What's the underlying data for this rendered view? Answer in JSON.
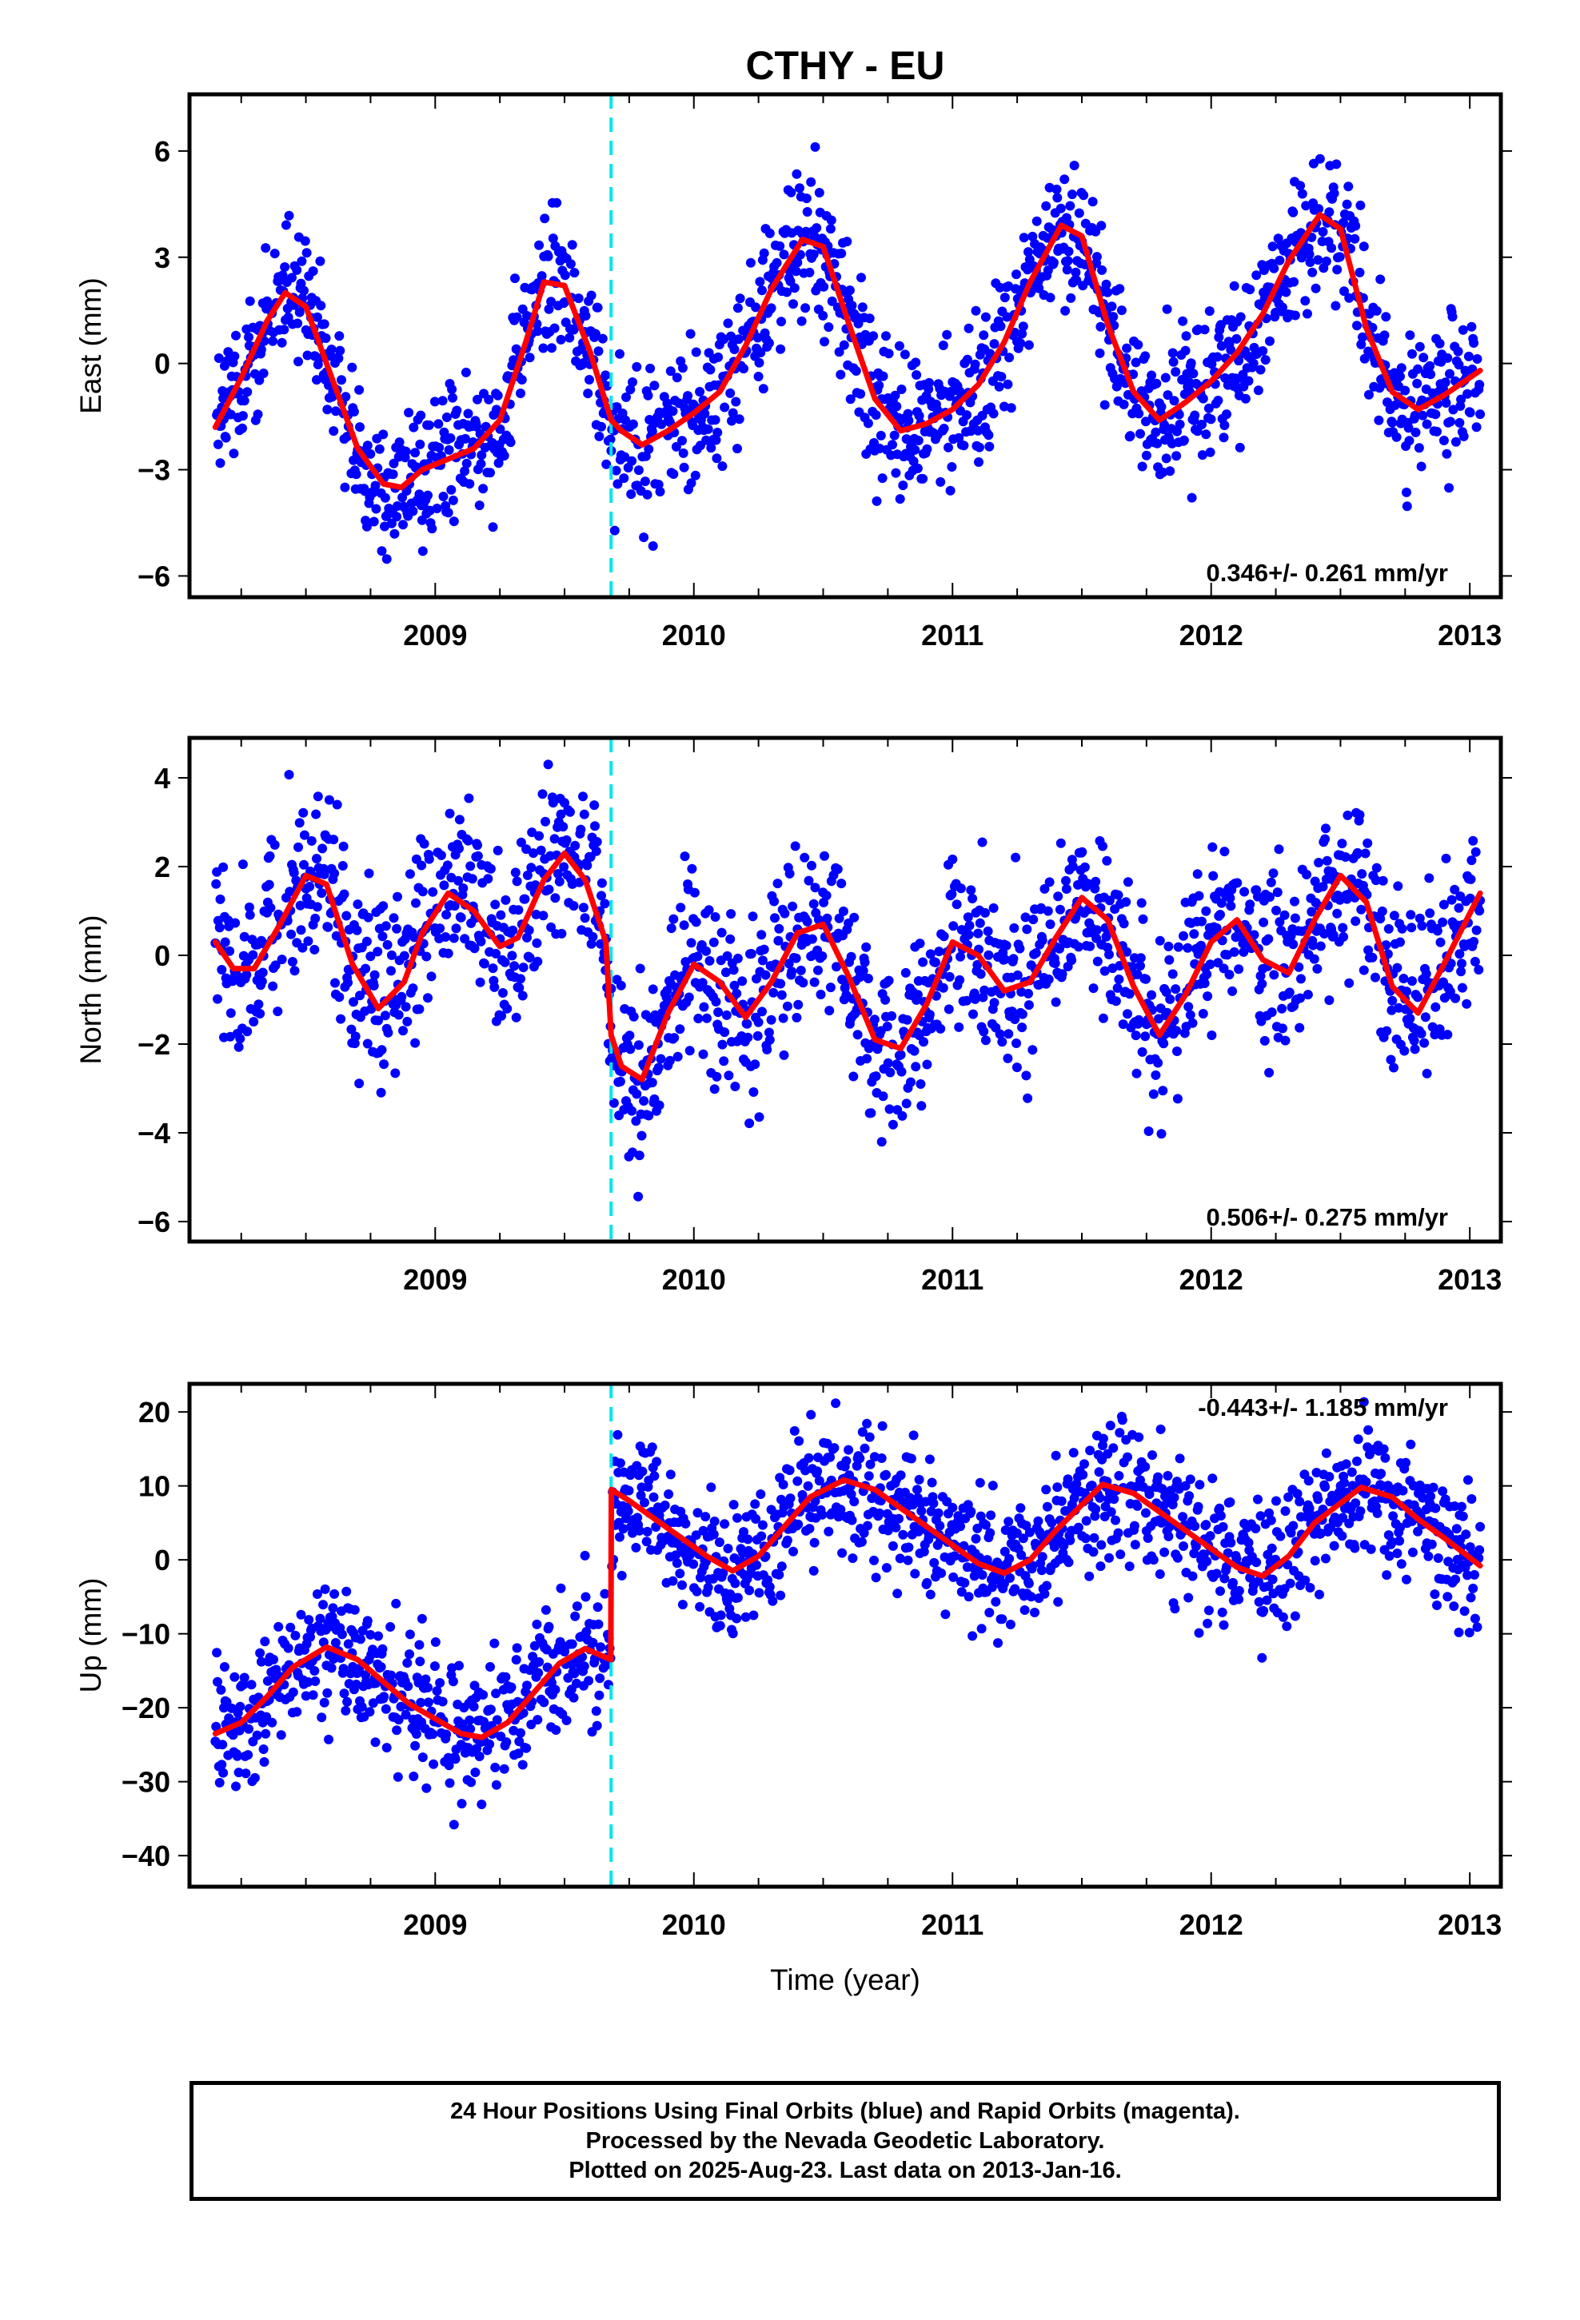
{
  "chart_title": "CTHY - EU",
  "x_axis_label": "Time (year)",
  "caption": {
    "line1": "24 Hour Positions Using Final Orbits (blue) and Rapid Orbits (magenta).",
    "line2": "Processed by the Nevada Geodetic Laboratory.",
    "line3": "Plotted on 2025-Aug-23. Last data on 2013-Jan-16."
  },
  "colors": {
    "points": "#0000ff",
    "model": "#ff0000",
    "event": "#00e5ee",
    "frame": "#000000"
  },
  "chart_data": [
    {
      "type": "scatter",
      "title": "CTHY - EU",
      "xlabel": "",
      "ylabel": "East (mm)",
      "xlim": [
        2008.05,
        2013.12
      ],
      "ylim": [
        -6.6,
        7.6
      ],
      "xticks": [
        2009,
        2010,
        2011,
        2012,
        2013
      ],
      "yticks": [
        -6,
        -3,
        0,
        3,
        6
      ],
      "rate_label": "0.346+/- 0.261 mm/yr",
      "rate_position": "bottom-right",
      "event_line_x": 2009.68,
      "scatter_noise_mm": 1.0,
      "series": [
        {
          "name": "24 Hour Positions (Final Orbits)",
          "kind": "points",
          "x_range": [
            2008.15,
            2013.04
          ],
          "style": "dots"
        },
        {
          "name": "Model fit",
          "kind": "line",
          "x": [
            2008.15,
            2008.25,
            2008.35,
            2008.42,
            2008.5,
            2008.6,
            2008.7,
            2008.8,
            2008.87,
            2008.95,
            2009.05,
            2009.15,
            2009.25,
            2009.35,
            2009.42,
            2009.5,
            2009.6,
            2009.68,
            2009.72,
            2009.8,
            2009.9,
            2010.0,
            2010.1,
            2010.2,
            2010.3,
            2010.42,
            2010.5,
            2010.6,
            2010.7,
            2010.8,
            2010.9,
            2011.0,
            2011.1,
            2011.2,
            2011.3,
            2011.42,
            2011.5,
            2011.6,
            2011.7,
            2011.8,
            2011.9,
            2012.0,
            2012.1,
            2012.2,
            2012.3,
            2012.42,
            2012.5,
            2012.6,
            2012.7,
            2012.8,
            2012.9,
            2013.04
          ],
          "y": [
            -1.8,
            -0.4,
            1.2,
            2.0,
            1.6,
            -0.4,
            -2.4,
            -3.4,
            -3.5,
            -3.0,
            -2.7,
            -2.4,
            -1.6,
            0.6,
            2.3,
            2.2,
            0.3,
            -1.6,
            -1.9,
            -2.3,
            -1.9,
            -1.4,
            -0.8,
            0.5,
            2.1,
            3.5,
            3.3,
            1.1,
            -1.0,
            -1.9,
            -1.7,
            -1.3,
            -0.6,
            0.6,
            2.3,
            3.9,
            3.6,
            1.1,
            -0.8,
            -1.6,
            -1.1,
            -0.5,
            0.3,
            1.4,
            2.9,
            4.2,
            3.8,
            1.0,
            -0.8,
            -1.3,
            -0.9,
            -0.2
          ]
        }
      ]
    },
    {
      "type": "scatter",
      "title": "",
      "xlabel": "",
      "ylabel": "North (mm)",
      "xlim": [
        2008.05,
        2013.12
      ],
      "ylim": [
        -6.45,
        4.9
      ],
      "xticks": [
        2009,
        2010,
        2011,
        2012,
        2013
      ],
      "yticks": [
        -6,
        -4,
        -2,
        0,
        2,
        4
      ],
      "rate_label": "0.506+/- 0.275 mm/yr",
      "rate_position": "bottom-right",
      "event_line_x": 2009.68,
      "scatter_noise_mm": 1.0,
      "series": [
        {
          "name": "24 Hour Positions (Final Orbits)",
          "kind": "points",
          "x_range": [
            2008.15,
            2013.04
          ],
          "style": "dots"
        },
        {
          "name": "Model fit",
          "kind": "line",
          "x": [
            2008.15,
            2008.22,
            2008.3,
            2008.4,
            2008.5,
            2008.58,
            2008.68,
            2008.78,
            2008.88,
            2008.95,
            2009.05,
            2009.15,
            2009.25,
            2009.32,
            2009.42,
            2009.5,
            2009.58,
            2009.66,
            2009.68,
            2009.72,
            2009.8,
            2009.9,
            2010.0,
            2010.1,
            2010.2,
            2010.3,
            2010.4,
            2010.5,
            2010.6,
            2010.7,
            2010.8,
            2010.9,
            2011.0,
            2011.1,
            2011.2,
            2011.3,
            2011.4,
            2011.5,
            2011.6,
            2011.7,
            2011.8,
            2011.9,
            2012.0,
            2012.1,
            2012.2,
            2012.3,
            2012.4,
            2012.5,
            2012.6,
            2012.7,
            2012.8,
            2012.9,
            2013.04
          ],
          "y": [
            0.3,
            -0.3,
            -0.3,
            0.7,
            1.8,
            1.6,
            -0.2,
            -1.2,
            -0.6,
            0.5,
            1.4,
            1.0,
            0.2,
            0.4,
            1.7,
            2.3,
            1.7,
            0.3,
            -1.8,
            -2.5,
            -2.8,
            -1.3,
            -0.2,
            -0.6,
            -1.4,
            -0.6,
            0.5,
            0.7,
            -0.5,
            -1.9,
            -2.1,
            -1.1,
            0.3,
            0.0,
            -0.8,
            -0.6,
            0.4,
            1.3,
            0.8,
            -0.7,
            -1.8,
            -0.9,
            0.3,
            0.8,
            -0.1,
            -0.4,
            0.8,
            1.8,
            1.2,
            -0.7,
            -1.3,
            -0.2,
            1.4
          ]
        }
      ]
    },
    {
      "type": "scatter",
      "title": "",
      "xlabel": "Time (year)",
      "ylabel": "Up (mm)",
      "xlim": [
        2008.05,
        2013.12
      ],
      "ylim": [
        -44.2,
        23.8
      ],
      "xticks": [
        2009,
        2010,
        2011,
        2012,
        2013
      ],
      "yticks": [
        -40,
        -30,
        -20,
        -10,
        0,
        10,
        20
      ],
      "rate_label": "-0.443+/- 1.185 mm/yr",
      "rate_position": "top-right",
      "event_line_x": 2009.68,
      "scatter_noise_mm": 4.5,
      "series": [
        {
          "name": "24 Hour Positions (Final Orbits)",
          "kind": "points",
          "x_range": [
            2008.15,
            2013.04
          ],
          "style": "dots"
        },
        {
          "name": "Model fit",
          "kind": "line",
          "x": [
            2008.15,
            2008.25,
            2008.35,
            2008.45,
            2008.58,
            2008.7,
            2008.8,
            2008.9,
            2009.0,
            2009.1,
            2009.18,
            2009.28,
            2009.38,
            2009.48,
            2009.58,
            2009.679,
            2009.681,
            2009.75,
            2009.85,
            2009.95,
            2010.05,
            2010.15,
            2010.25,
            2010.35,
            2010.45,
            2010.58,
            2010.7,
            2010.8,
            2010.9,
            2011.0,
            2011.1,
            2011.2,
            2011.3,
            2011.4,
            2011.58,
            2011.7,
            2011.8,
            2011.9,
            2012.0,
            2012.1,
            2012.2,
            2012.3,
            2012.4,
            2012.58,
            2012.7,
            2012.8,
            2012.9,
            2013.04
          ],
          "y": [
            -23.5,
            -22.0,
            -18.5,
            -14.5,
            -11.8,
            -13.5,
            -16.5,
            -19.5,
            -21.5,
            -23.5,
            -24.0,
            -22.0,
            -18.0,
            -14.0,
            -12.0,
            -13.5,
            9.5,
            8.0,
            5.5,
            3.0,
            0.5,
            -1.5,
            0.5,
            4.5,
            8.5,
            10.8,
            9.5,
            7.0,
            4.5,
            2.0,
            -0.5,
            -1.8,
            0.0,
            4.0,
            10.2,
            9.0,
            6.5,
            4.0,
            1.5,
            -1.0,
            -2.2,
            0.5,
            5.0,
            9.8,
            8.5,
            5.5,
            3.0,
            -0.8
          ]
        }
      ]
    }
  ]
}
